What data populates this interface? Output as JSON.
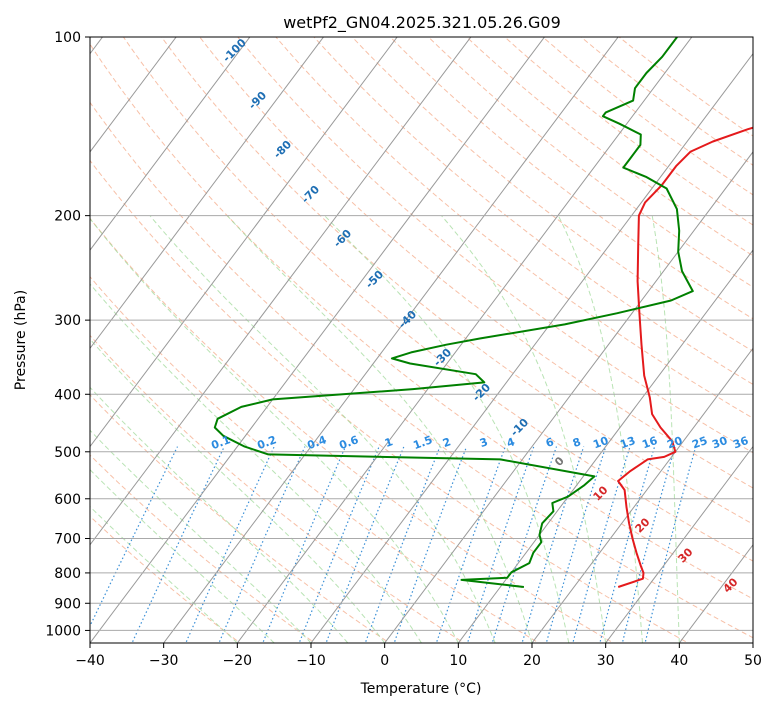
{
  "chart_data": {
    "type": "skew-t",
    "title": "wetPf2_GN04.2025.321.05.26.G09",
    "xlabel": "Temperature (°C)",
    "ylabel": "Pressure (hPa)",
    "xlim": [
      -40,
      50
    ],
    "ylim": [
      1050,
      100
    ],
    "y_scale": "log",
    "x_ticks": [
      -40,
      -30,
      -20,
      -10,
      0,
      10,
      20,
      30,
      40,
      50
    ],
    "x_tick_labels": [
      "−40",
      "−30",
      "−20",
      "−10",
      "0",
      "10",
      "20",
      "30",
      "40",
      "50"
    ],
    "y_ticks": [
      1000,
      900,
      800,
      700,
      600,
      500,
      400,
      300,
      200,
      100
    ],
    "y_tick_labels": [
      "1000",
      "900",
      "800",
      "700",
      "600",
      "500",
      "400",
      "300",
      "200",
      "100"
    ],
    "grid": true,
    "series": [
      {
        "color": "#e41a1c",
        "points": [
          [
            26.0,
            845
          ],
          [
            28.5,
            818
          ],
          [
            28.0,
            800
          ],
          [
            27.0,
            780
          ],
          [
            25.0,
            740
          ],
          [
            23.0,
            700
          ],
          [
            21.0,
            660
          ],
          [
            19.0,
            620
          ],
          [
            17.0,
            580
          ],
          [
            15.2,
            560
          ],
          [
            15.8,
            540
          ],
          [
            17.0,
            515
          ],
          [
            19.0,
            510
          ],
          [
            20.0,
            500
          ],
          [
            18.5,
            480
          ],
          [
            15.5,
            455
          ],
          [
            13.0,
            432
          ],
          [
            11.0,
            405
          ],
          [
            8.0,
            372
          ],
          [
            4.5,
            330
          ],
          [
            1.0,
            292
          ],
          [
            -2.5,
            258
          ],
          [
            -6.0,
            225
          ],
          [
            -9.0,
            200
          ],
          [
            -9.5,
            190
          ],
          [
            -9.0,
            178
          ],
          [
            -9.0,
            165
          ],
          [
            -8.5,
            156
          ],
          [
            -6.5,
            150
          ],
          [
            -3.0,
            143
          ],
          [
            1.0,
            137
          ],
          [
            6.0,
            128
          ],
          [
            10.0,
            120
          ],
          [
            12.0,
            115
          ],
          [
            14.0,
            110
          ],
          [
            15.0,
            104
          ],
          [
            15.5,
            100
          ]
        ]
      },
      {
        "color": "#008000",
        "points": [
          [
            13.2,
            845
          ],
          [
            4.0,
            822
          ],
          [
            10.0,
            815
          ],
          [
            10.0,
            798
          ],
          [
            11.5,
            770
          ],
          [
            11.0,
            740
          ],
          [
            11.0,
            710
          ],
          [
            10.0,
            690
          ],
          [
            9.2,
            660
          ],
          [
            9.5,
            630
          ],
          [
            8.5,
            610
          ],
          [
            10.0,
            595
          ],
          [
            11.0,
            570
          ],
          [
            11.5,
            550
          ],
          [
            -3.0,
            515
          ],
          [
            -35.0,
            505
          ],
          [
            -39.0,
            490
          ],
          [
            -43.0,
            470
          ],
          [
            -45.0,
            455
          ],
          [
            -45.5,
            440
          ],
          [
            -43.5,
            420
          ],
          [
            -40.0,
            408
          ],
          [
            -22.0,
            392
          ],
          [
            -13.0,
            382
          ],
          [
            -15.0,
            370
          ],
          [
            -25.0,
            355
          ],
          [
            -28.0,
            348
          ],
          [
            -26.0,
            340
          ],
          [
            -22.0,
            330
          ],
          [
            -18.0,
            322
          ],
          [
            -8.0,
            305
          ],
          [
            -2.0,
            292
          ],
          [
            4.0,
            278
          ],
          [
            6.0,
            268
          ],
          [
            2.5,
            248
          ],
          [
            0.0,
            230
          ],
          [
            -2.0,
            212
          ],
          [
            -4.5,
            195
          ],
          [
            -8.0,
            180
          ],
          [
            -12.0,
            172
          ],
          [
            -16.0,
            166
          ],
          [
            -16.0,
            160
          ],
          [
            -16.0,
            152
          ],
          [
            -17.0,
            146
          ],
          [
            -21.0,
            140
          ],
          [
            -24.0,
            136
          ],
          [
            -24.0,
            134
          ],
          [
            -21.5,
            128
          ],
          [
            -22.5,
            122
          ],
          [
            -22.5,
            115
          ],
          [
            -22.0,
            108
          ],
          [
            -22.0,
            100
          ]
        ]
      }
    ],
    "annotations": {
      "height_labels": [
        "-100",
        "-90",
        "-80",
        "-70",
        "-60",
        "-50",
        "-40",
        "-30",
        "-20",
        "-10",
        "0",
        "10",
        "20",
        "30",
        "40"
      ],
      "mixing_ratio_labels": [
        "0.1",
        "0.2",
        "0.4",
        "0.6",
        "1",
        "1.5",
        "2",
        "3",
        "4",
        "6",
        "8",
        "10",
        "13",
        "16",
        "20",
        "25",
        "30",
        "36"
      ]
    }
  }
}
